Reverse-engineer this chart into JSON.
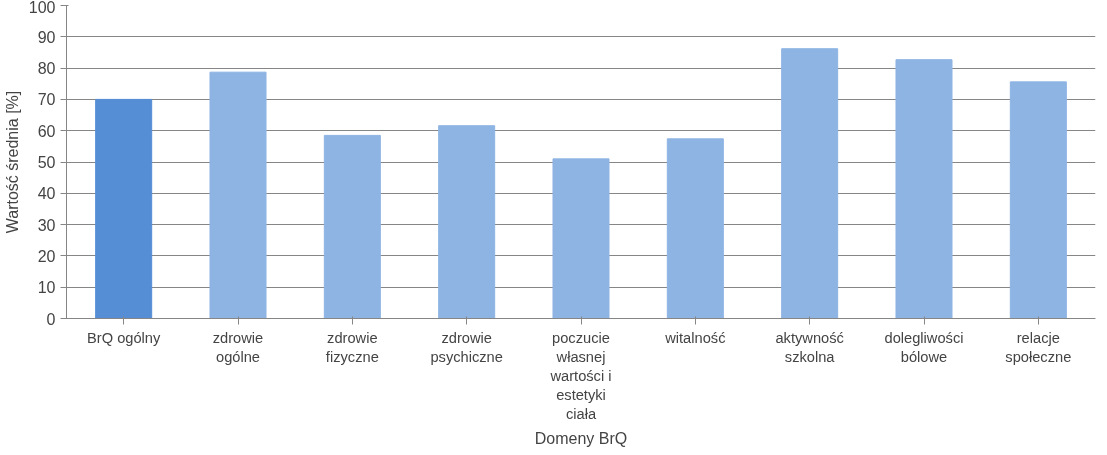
{
  "chart_data": {
    "type": "bar",
    "xlabel": "Domeny BrQ",
    "ylabel": "Wartość średnia [%]",
    "categories": [
      "BrQ ogólny",
      "zdrowie ogólne",
      "zdrowie fizyczne",
      "zdrowie psychiczne",
      "poczucie własnej wartości i estetyki ciała",
      "witalność",
      "aktywność szkolna",
      "dolegliwości bólowe",
      "relacje społeczne"
    ],
    "values": [
      70,
      78.7,
      58.5,
      61.6,
      51,
      57.4,
      86.2,
      82.7,
      75.6
    ],
    "colors": [
      "#558ed5",
      "#8eb4e3",
      "#8eb4e3",
      "#8eb4e3",
      "#8eb4e3",
      "#8eb4e3",
      "#8eb4e3",
      "#8eb4e3",
      "#8eb4e3"
    ],
    "ylim": [
      0,
      100
    ],
    "yticks": [
      0,
      10,
      20,
      30,
      40,
      50,
      60,
      70,
      80,
      90,
      100
    ],
    "grid": "y"
  }
}
